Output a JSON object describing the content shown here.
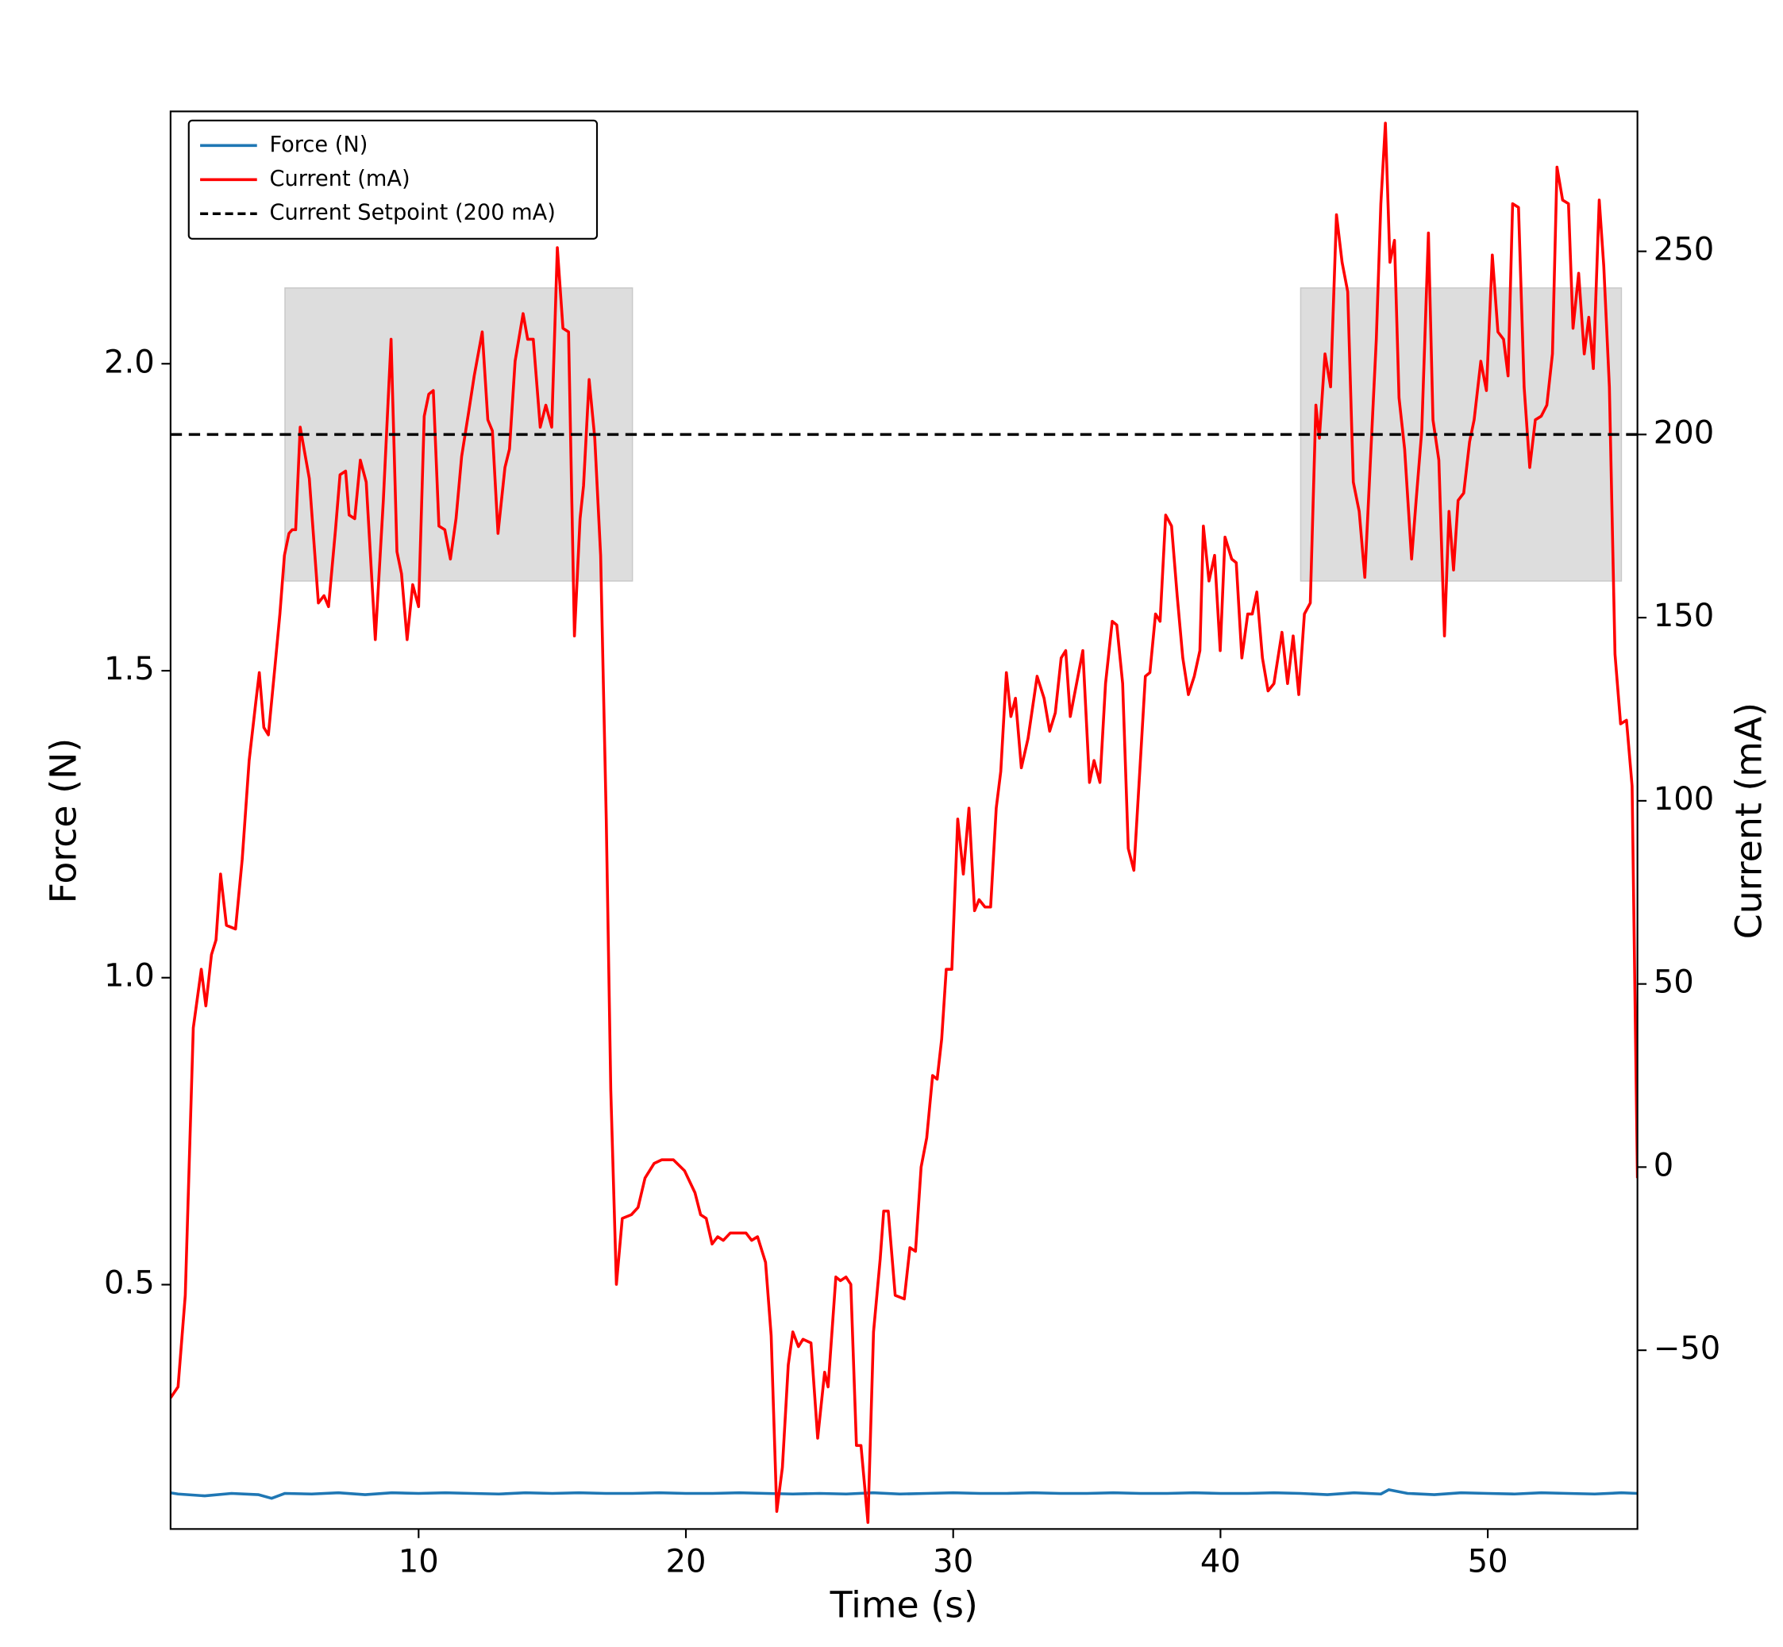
{
  "chart_data": {
    "type": "line",
    "xlabel": "Time (s)",
    "ylabel": "Force (N)",
    "y2label": "Current (mA)",
    "xlim": [
      0.72,
      55.6
    ],
    "xticks": [
      10,
      20,
      30,
      40,
      50
    ],
    "ylim": [
      0.102,
      2.411
    ],
    "yticks": [
      0.5,
      {
        "value": 1,
        "label": "1.0"
      },
      1.5,
      {
        "value": 2,
        "label": "2.0"
      }
    ],
    "y2lim": [
      -98.8,
      288.2
    ],
    "y2ticks": [
      {
        "value": -50,
        "label": "−50"
      },
      0,
      50,
      100,
      150,
      200,
      250
    ],
    "legend": "upper left",
    "series": [
      {
        "name": "Force (N)",
        "color": "#1f77b4",
        "axis": "y",
        "x": [
          0.72,
          1,
          2,
          3,
          4,
          4.5,
          5,
          6,
          7,
          8,
          9,
          10,
          11,
          12,
          13,
          14,
          15,
          16,
          17,
          18,
          19,
          20,
          21,
          22,
          23,
          24,
          25,
          26,
          27,
          28,
          29,
          30,
          31,
          32,
          33,
          34,
          35,
          36,
          37,
          38,
          39,
          40,
          41,
          42,
          43,
          44,
          45,
          46,
          46.3,
          47,
          48,
          49,
          50,
          51,
          52,
          53,
          54,
          55,
          55.6
        ],
        "values": [
          0.161,
          0.159,
          0.156,
          0.16,
          0.158,
          0.152,
          0.16,
          0.159,
          0.161,
          0.158,
          0.161,
          0.16,
          0.161,
          0.16,
          0.159,
          0.161,
          0.16,
          0.161,
          0.16,
          0.16,
          0.161,
          0.16,
          0.16,
          0.161,
          0.16,
          0.159,
          0.16,
          0.159,
          0.161,
          0.159,
          0.16,
          0.161,
          0.16,
          0.16,
          0.161,
          0.16,
          0.16,
          0.161,
          0.16,
          0.16,
          0.161,
          0.16,
          0.16,
          0.161,
          0.16,
          0.158,
          0.161,
          0.159,
          0.166,
          0.16,
          0.158,
          0.161,
          0.16,
          0.159,
          0.161,
          0.16,
          0.159,
          0.161,
          0.16
        ]
      },
      {
        "name": "Current (mA)",
        "color": "#ff0000",
        "axis": "y2",
        "x": [
          0.72,
          1.0,
          1.27,
          1.57,
          1.87,
          2.04,
          2.25,
          2.42,
          2.59,
          2.81,
          3.15,
          3.4,
          3.66,
          3.91,
          4.04,
          4.21,
          4.38,
          4.63,
          4.81,
          4.98,
          5.15,
          5.27,
          5.4,
          5.57,
          5.91,
          6.25,
          6.46,
          6.63,
          6.89,
          7.06,
          7.27,
          7.4,
          7.61,
          7.82,
          8.04,
          8.38,
          8.68,
          8.97,
          9.19,
          9.36,
          9.57,
          9.78,
          10.0,
          10.21,
          10.38,
          10.55,
          10.76,
          10.98,
          11.19,
          11.4,
          11.61,
          11.87,
          12.08,
          12.38,
          12.59,
          12.76,
          12.97,
          13.23,
          13.4,
          13.61,
          13.91,
          14.08,
          14.29,
          14.55,
          14.76,
          14.98,
          15.19,
          15.4,
          15.61,
          15.83,
          16.04,
          16.17,
          16.38,
          16.59,
          16.81,
          17.02,
          17.19,
          17.4,
          17.62,
          17.96,
          18.21,
          18.47,
          18.81,
          19.1,
          19.53,
          19.95,
          20.34,
          20.55,
          20.76,
          20.98,
          21.19,
          21.4,
          21.66,
          21.91,
          22.25,
          22.46,
          22.68,
          22.98,
          23.19,
          23.4,
          23.61,
          23.83,
          24.0,
          24.21,
          24.38,
          24.68,
          24.93,
          25.19,
          25.32,
          25.61,
          25.78,
          25.99,
          26.17,
          26.38,
          26.55,
          26.81,
          27.02,
          27.27,
          27.4,
          27.57,
          27.83,
          28.17,
          28.38,
          28.59,
          28.8,
          29.01,
          29.23,
          29.4,
          29.57,
          29.74,
          29.95,
          30.17,
          30.38,
          30.59,
          30.8,
          30.97,
          31.19,
          31.4,
          31.61,
          31.78,
          31.99,
          32.16,
          32.33,
          32.55,
          32.8,
          33.14,
          33.4,
          33.61,
          33.82,
          34.04,
          34.21,
          34.38,
          34.59,
          34.85,
          35.1,
          35.27,
          35.49,
          35.7,
          35.95,
          36.12,
          36.34,
          36.55,
          36.76,
          36.98,
          37.19,
          37.36,
          37.57,
          37.74,
          37.95,
          38.17,
          38.38,
          38.59,
          38.8,
          39.02,
          39.23,
          39.36,
          39.57,
          39.78,
          39.99,
          40.17,
          40.42,
          40.59,
          40.8,
          41.02,
          41.19,
          41.36,
          41.57,
          41.78,
          42.0,
          42.3,
          42.51,
          42.72,
          42.93,
          43.14,
          43.36,
          43.57,
          43.7,
          43.91,
          44.12,
          44.34,
          44.55,
          44.76,
          44.97,
          45.19,
          45.4,
          45.61,
          45.83,
          46.0,
          46.17,
          46.34,
          46.51,
          46.68,
          46.89,
          47.15,
          47.32,
          47.53,
          47.78,
          47.95,
          48.17,
          48.38,
          48.55,
          48.72,
          48.89,
          49.1,
          49.32,
          49.49,
          49.74,
          49.95,
          50.17,
          50.38,
          50.59,
          50.76,
          50.93,
          51.15,
          51.36,
          51.57,
          51.78,
          52.0,
          52.21,
          52.42,
          52.59,
          52.8,
          53.02,
          53.19,
          53.4,
          53.61,
          53.78,
          53.95,
          54.17,
          54.34,
          54.55,
          54.76,
          54.97,
          55.19,
          55.4,
          55.6
        ],
        "values": [
          -63,
          -60,
          -35,
          38,
          54,
          44,
          58,
          62,
          80,
          66,
          65,
          84,
          111,
          127,
          135,
          120,
          118,
          137,
          151,
          167,
          173,
          174,
          174,
          202,
          188,
          154,
          156,
          153,
          174,
          189,
          190,
          178,
          177,
          193,
          187,
          144,
          182,
          226,
          168,
          162,
          144,
          159,
          153,
          205,
          211,
          212,
          175,
          174,
          166,
          177,
          194,
          206,
          216,
          228,
          204,
          201,
          173,
          191,
          196,
          220,
          233,
          226,
          226,
          202,
          208,
          202,
          251,
          229,
          228,
          145,
          177,
          186,
          215,
          199,
          167,
          95,
          21,
          -32,
          -14,
          -13,
          -11,
          -3,
          1,
          2,
          2,
          -1,
          -7,
          -13,
          -14,
          -21,
          -19,
          -20,
          -18,
          -18,
          -18,
          -20,
          -19,
          -26,
          -46,
          -94,
          -82,
          -54,
          -45,
          -49,
          -47,
          -48,
          -74,
          -56,
          -60,
          -30,
          -31,
          -30,
          -32,
          -76,
          -76,
          -97,
          -45,
          -25,
          -12,
          -12,
          -35,
          -36,
          -22,
          -23,
          0,
          8,
          25,
          24,
          35,
          54,
          54,
          95,
          80,
          98,
          70,
          73,
          71,
          71,
          98,
          108,
          135,
          123,
          128,
          109,
          117,
          134,
          128,
          119,
          124,
          139,
          141,
          123,
          131,
          141,
          105,
          111,
          105,
          132,
          149,
          148,
          132,
          87,
          81,
          108,
          134,
          135,
          151,
          149,
          178,
          175,
          156,
          139,
          129,
          134,
          141,
          175,
          160,
          167,
          141,
          172,
          166,
          165,
          139,
          151,
          151,
          157,
          139,
          130,
          132,
          146,
          132,
          145,
          129,
          151,
          154,
          208,
          199,
          222,
          213,
          260,
          247,
          239,
          187,
          179,
          161,
          193,
          226,
          263,
          285,
          247,
          253,
          210,
          196,
          166,
          182,
          201,
          255,
          204,
          193,
          145,
          179,
          163,
          182,
          184,
          198,
          204,
          220,
          212,
          249,
          228,
          226,
          216,
          263,
          262,
          213,
          191,
          204,
          205,
          208,
          222,
          273,
          264,
          263,
          229,
          244,
          222,
          232,
          218,
          264,
          246,
          213,
          140,
          121,
          122,
          104,
          -3
        ]
      }
    ],
    "hlines": [
      {
        "name": "Current Setpoint (200 mA)",
        "y": 200,
        "axis": "y2",
        "color": "#000000",
        "style": "dashed"
      }
    ],
    "spans": [
      {
        "x": [
          5,
          18
        ],
        "y": [
          160,
          240
        ],
        "axis": "y2",
        "color": "#dddddd"
      },
      {
        "x": [
          43,
          55
        ],
        "y": [
          160,
          240
        ],
        "axis": "y2",
        "color": "#dddddd"
      }
    ]
  }
}
